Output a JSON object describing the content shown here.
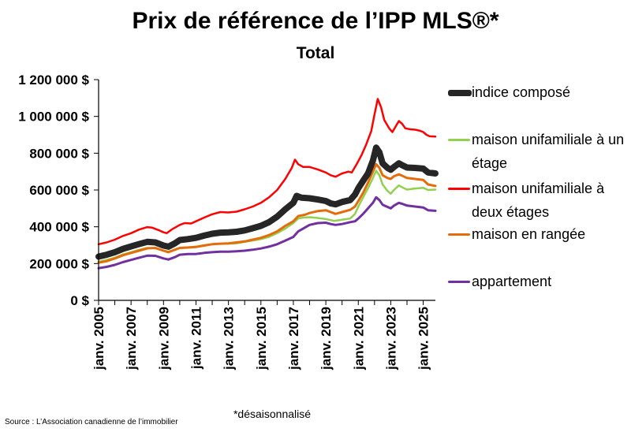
{
  "title": "Prix de référence de l’IPP MLS®*",
  "subtitle": "Total",
  "note": "*désaisonnalisé",
  "source": "Source : L’Association canadienne de l’immobilier",
  "legend": [
    {
      "label": "indice composé",
      "color": "#262626"
    },
    {
      "label": "maison unifamiliale à un étage",
      "color": "#92d050"
    },
    {
      "label": "maison unifamiliale à deux étages",
      "color": "#ff0000"
    },
    {
      "label": "maison en rangée",
      "color": "#e46c0a"
    },
    {
      "label": "appartement",
      "color": "#7030a0"
    }
  ],
  "chart_data": {
    "type": "line",
    "title": "Prix de référence de l’IPP MLS®*",
    "subtitle": "Total",
    "ylim": [
      0,
      1200000
    ],
    "yticks": [
      "0 $",
      "200 000 $",
      "400 000 $",
      "600 000 $",
      "800 000 $",
      "1 000 000 $",
      "1 200 000 $"
    ],
    "ytick_values": [
      0,
      200000,
      400000,
      600000,
      800000,
      1000000,
      1200000
    ],
    "xlim": [
      2005.0,
      2025.75
    ],
    "xticks": [
      "janv. 2005",
      "janv. 2007",
      "janv. 2009",
      "janv. 2011",
      "janv. 2013",
      "janv. 2015",
      "janv. 2017",
      "janv. 2019",
      "janv. 2021",
      "janv. 2023",
      "janv. 2025"
    ],
    "xtick_values": [
      2005,
      2007,
      2009,
      2011,
      2013,
      2015,
      2017,
      2019,
      2021,
      2023,
      2025
    ],
    "grid": false,
    "legend_position": "right",
    "series": [
      {
        "name": "maison unifamiliale à deux étages",
        "color": "#ff0000",
        "width": 2.5,
        "points": [
          [
            2005.0,
            305000
          ],
          [
            2005.5,
            315000
          ],
          [
            2006.0,
            330000
          ],
          [
            2006.5,
            350000
          ],
          [
            2007.0,
            365000
          ],
          [
            2007.5,
            385000
          ],
          [
            2008.0,
            398000
          ],
          [
            2008.3,
            395000
          ],
          [
            2008.7,
            382000
          ],
          [
            2009.0,
            370000
          ],
          [
            2009.2,
            365000
          ],
          [
            2009.5,
            385000
          ],
          [
            2010.0,
            410000
          ],
          [
            2010.3,
            420000
          ],
          [
            2010.7,
            418000
          ],
          [
            2011.0,
            430000
          ],
          [
            2011.5,
            450000
          ],
          [
            2012.0,
            468000
          ],
          [
            2012.5,
            480000
          ],
          [
            2013.0,
            478000
          ],
          [
            2013.5,
            482000
          ],
          [
            2014.0,
            495000
          ],
          [
            2014.5,
            510000
          ],
          [
            2015.0,
            530000
          ],
          [
            2015.5,
            560000
          ],
          [
            2016.0,
            600000
          ],
          [
            2016.5,
            660000
          ],
          [
            2016.9,
            720000
          ],
          [
            2017.1,
            765000
          ],
          [
            2017.3,
            740000
          ],
          [
            2017.6,
            725000
          ],
          [
            2018.0,
            725000
          ],
          [
            2018.5,
            712000
          ],
          [
            2019.0,
            695000
          ],
          [
            2019.3,
            680000
          ],
          [
            2019.6,
            672000
          ],
          [
            2020.0,
            690000
          ],
          [
            2020.4,
            700000
          ],
          [
            2020.6,
            695000
          ],
          [
            2020.9,
            740000
          ],
          [
            2021.2,
            790000
          ],
          [
            2021.5,
            850000
          ],
          [
            2021.8,
            920000
          ],
          [
            2022.0,
            1010000
          ],
          [
            2022.2,
            1095000
          ],
          [
            2022.4,
            1050000
          ],
          [
            2022.6,
            980000
          ],
          [
            2022.9,
            935000
          ],
          [
            2023.1,
            915000
          ],
          [
            2023.3,
            945000
          ],
          [
            2023.5,
            975000
          ],
          [
            2023.7,
            960000
          ],
          [
            2023.9,
            935000
          ],
          [
            2024.2,
            930000
          ],
          [
            2024.5,
            928000
          ],
          [
            2024.8,
            922000
          ],
          [
            2025.0,
            915000
          ],
          [
            2025.2,
            900000
          ],
          [
            2025.4,
            892000
          ],
          [
            2025.75,
            890000
          ]
        ]
      },
      {
        "name": "maison unifamiliale à un étage",
        "color": "#92d050",
        "width": 2.5,
        "points": [
          [
            2005.0,
            210000
          ],
          [
            2005.5,
            220000
          ],
          [
            2006.0,
            232000
          ],
          [
            2006.5,
            250000
          ],
          [
            2007.0,
            262000
          ],
          [
            2007.5,
            275000
          ],
          [
            2008.0,
            285000
          ],
          [
            2008.5,
            283000
          ],
          [
            2009.0,
            270000
          ],
          [
            2009.3,
            265000
          ],
          [
            2009.7,
            275000
          ],
          [
            2010.0,
            285000
          ],
          [
            2010.5,
            288000
          ],
          [
            2011.0,
            292000
          ],
          [
            2011.5,
            300000
          ],
          [
            2012.0,
            305000
          ],
          [
            2012.5,
            308000
          ],
          [
            2013.0,
            308000
          ],
          [
            2013.5,
            310000
          ],
          [
            2014.0,
            318000
          ],
          [
            2014.5,
            325000
          ],
          [
            2015.0,
            333000
          ],
          [
            2015.5,
            345000
          ],
          [
            2016.0,
            365000
          ],
          [
            2016.5,
            390000
          ],
          [
            2017.0,
            420000
          ],
          [
            2017.3,
            445000
          ],
          [
            2017.6,
            450000
          ],
          [
            2018.0,
            452000
          ],
          [
            2018.5,
            448000
          ],
          [
            2019.0,
            442000
          ],
          [
            2019.5,
            432000
          ],
          [
            2020.0,
            438000
          ],
          [
            2020.5,
            445000
          ],
          [
            2020.8,
            470000
          ],
          [
            2021.0,
            510000
          ],
          [
            2021.3,
            560000
          ],
          [
            2021.6,
            610000
          ],
          [
            2021.9,
            665000
          ],
          [
            2022.1,
            705000
          ],
          [
            2022.3,
            680000
          ],
          [
            2022.5,
            630000
          ],
          [
            2022.8,
            595000
          ],
          [
            2023.0,
            580000
          ],
          [
            2023.2,
            600000
          ],
          [
            2023.5,
            625000
          ],
          [
            2023.7,
            615000
          ],
          [
            2024.0,
            602000
          ],
          [
            2024.5,
            608000
          ],
          [
            2025.0,
            612000
          ],
          [
            2025.3,
            600000
          ],
          [
            2025.75,
            602000
          ]
        ]
      },
      {
        "name": "maison en rangée",
        "color": "#e46c0a",
        "width": 3,
        "points": [
          [
            2005.0,
            205000
          ],
          [
            2005.5,
            213000
          ],
          [
            2006.0,
            228000
          ],
          [
            2006.5,
            245000
          ],
          [
            2007.0,
            258000
          ],
          [
            2007.5,
            270000
          ],
          [
            2008.0,
            283000
          ],
          [
            2008.5,
            285000
          ],
          [
            2009.0,
            270000
          ],
          [
            2009.3,
            262000
          ],
          [
            2009.7,
            275000
          ],
          [
            2010.0,
            285000
          ],
          [
            2010.5,
            287000
          ],
          [
            2011.0,
            290000
          ],
          [
            2011.5,
            298000
          ],
          [
            2012.0,
            305000
          ],
          [
            2012.5,
            308000
          ],
          [
            2013.0,
            310000
          ],
          [
            2013.5,
            315000
          ],
          [
            2014.0,
            320000
          ],
          [
            2014.5,
            330000
          ],
          [
            2015.0,
            340000
          ],
          [
            2015.5,
            355000
          ],
          [
            2016.0,
            375000
          ],
          [
            2016.5,
            405000
          ],
          [
            2017.0,
            430000
          ],
          [
            2017.3,
            458000
          ],
          [
            2017.7,
            465000
          ],
          [
            2018.0,
            475000
          ],
          [
            2018.5,
            485000
          ],
          [
            2019.0,
            490000
          ],
          [
            2019.3,
            480000
          ],
          [
            2019.6,
            470000
          ],
          [
            2020.0,
            480000
          ],
          [
            2020.5,
            492000
          ],
          [
            2020.8,
            510000
          ],
          [
            2021.0,
            540000
          ],
          [
            2021.3,
            585000
          ],
          [
            2021.6,
            640000
          ],
          [
            2021.9,
            700000
          ],
          [
            2022.1,
            740000
          ],
          [
            2022.3,
            720000
          ],
          [
            2022.5,
            680000
          ],
          [
            2022.8,
            665000
          ],
          [
            2023.0,
            660000
          ],
          [
            2023.2,
            675000
          ],
          [
            2023.5,
            685000
          ],
          [
            2023.7,
            678000
          ],
          [
            2024.0,
            665000
          ],
          [
            2024.5,
            660000
          ],
          [
            2025.0,
            655000
          ],
          [
            2025.3,
            630000
          ],
          [
            2025.75,
            622000
          ]
        ]
      },
      {
        "name": "appartement",
        "color": "#7030a0",
        "width": 3,
        "points": [
          [
            2005.0,
            175000
          ],
          [
            2005.5,
            182000
          ],
          [
            2006.0,
            193000
          ],
          [
            2006.5,
            208000
          ],
          [
            2007.0,
            220000
          ],
          [
            2007.5,
            232000
          ],
          [
            2008.0,
            243000
          ],
          [
            2008.5,
            242000
          ],
          [
            2009.0,
            228000
          ],
          [
            2009.3,
            222000
          ],
          [
            2009.7,
            235000
          ],
          [
            2010.0,
            248000
          ],
          [
            2010.5,
            252000
          ],
          [
            2011.0,
            252000
          ],
          [
            2011.5,
            258000
          ],
          [
            2012.0,
            262000
          ],
          [
            2012.5,
            265000
          ],
          [
            2013.0,
            265000
          ],
          [
            2013.5,
            267000
          ],
          [
            2014.0,
            270000
          ],
          [
            2014.5,
            275000
          ],
          [
            2015.0,
            282000
          ],
          [
            2015.5,
            292000
          ],
          [
            2016.0,
            305000
          ],
          [
            2016.5,
            325000
          ],
          [
            2017.0,
            345000
          ],
          [
            2017.3,
            375000
          ],
          [
            2017.7,
            395000
          ],
          [
            2018.0,
            410000
          ],
          [
            2018.5,
            420000
          ],
          [
            2019.0,
            422000
          ],
          [
            2019.3,
            415000
          ],
          [
            2019.6,
            410000
          ],
          [
            2020.0,
            415000
          ],
          [
            2020.5,
            425000
          ],
          [
            2020.8,
            430000
          ],
          [
            2021.0,
            445000
          ],
          [
            2021.3,
            470000
          ],
          [
            2021.6,
            500000
          ],
          [
            2021.9,
            530000
          ],
          [
            2022.1,
            560000
          ],
          [
            2022.3,
            545000
          ],
          [
            2022.5,
            520000
          ],
          [
            2022.8,
            508000
          ],
          [
            2023.0,
            500000
          ],
          [
            2023.2,
            515000
          ],
          [
            2023.5,
            530000
          ],
          [
            2023.7,
            525000
          ],
          [
            2024.0,
            515000
          ],
          [
            2024.5,
            510000
          ],
          [
            2025.0,
            505000
          ],
          [
            2025.3,
            490000
          ],
          [
            2025.75,
            487000
          ]
        ]
      },
      {
        "name": "indice composé",
        "color": "#262626",
        "width": 8,
        "points": [
          [
            2005.0,
            238000
          ],
          [
            2005.5,
            248000
          ],
          [
            2006.0,
            262000
          ],
          [
            2006.5,
            280000
          ],
          [
            2007.0,
            293000
          ],
          [
            2007.5,
            306000
          ],
          [
            2008.0,
            318000
          ],
          [
            2008.5,
            315000
          ],
          [
            2009.0,
            298000
          ],
          [
            2009.3,
            292000
          ],
          [
            2009.7,
            310000
          ],
          [
            2010.0,
            328000
          ],
          [
            2010.5,
            333000
          ],
          [
            2011.0,
            340000
          ],
          [
            2011.5,
            352000
          ],
          [
            2012.0,
            362000
          ],
          [
            2012.5,
            368000
          ],
          [
            2013.0,
            370000
          ],
          [
            2013.5,
            373000
          ],
          [
            2014.0,
            380000
          ],
          [
            2014.5,
            392000
          ],
          [
            2015.0,
            405000
          ],
          [
            2015.5,
            425000
          ],
          [
            2016.0,
            455000
          ],
          [
            2016.5,
            495000
          ],
          [
            2017.0,
            530000
          ],
          [
            2017.2,
            568000
          ],
          [
            2017.5,
            558000
          ],
          [
            2018.0,
            555000
          ],
          [
            2018.5,
            548000
          ],
          [
            2019.0,
            540000
          ],
          [
            2019.3,
            527000
          ],
          [
            2019.6,
            522000
          ],
          [
            2020.0,
            535000
          ],
          [
            2020.5,
            545000
          ],
          [
            2020.8,
            575000
          ],
          [
            2021.0,
            610000
          ],
          [
            2021.3,
            650000
          ],
          [
            2021.6,
            690000
          ],
          [
            2021.9,
            760000
          ],
          [
            2022.1,
            830000
          ],
          [
            2022.3,
            805000
          ],
          [
            2022.5,
            745000
          ],
          [
            2022.8,
            720000
          ],
          [
            2023.0,
            710000
          ],
          [
            2023.2,
            725000
          ],
          [
            2023.5,
            745000
          ],
          [
            2023.7,
            735000
          ],
          [
            2024.0,
            722000
          ],
          [
            2024.5,
            720000
          ],
          [
            2025.0,
            716000
          ],
          [
            2025.3,
            695000
          ],
          [
            2025.75,
            690000
          ]
        ]
      }
    ]
  }
}
